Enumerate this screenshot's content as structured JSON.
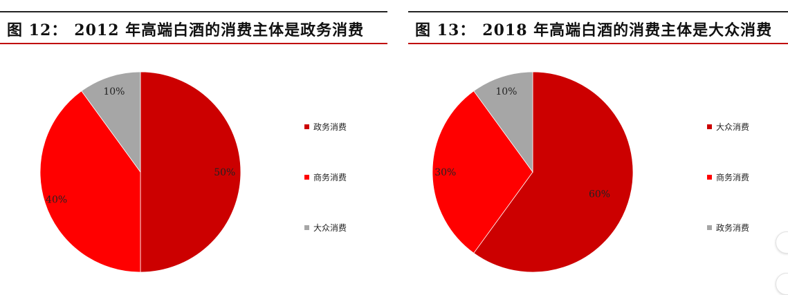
{
  "chart_data": [
    {
      "type": "pie",
      "figure_number": "图 12：",
      "title": "2012 年高端白酒的消费主体是政务消费",
      "slices": [
        {
          "label": "政务消费",
          "value": 50,
          "label_text": "50%",
          "color": "#cc0000"
        },
        {
          "label": "商务消费",
          "value": 40,
          "label_text": "40%",
          "color": "#ff0000"
        },
        {
          "label": "大众消费",
          "value": 10,
          "label_text": "10%",
          "color": "#a6a6a6"
        }
      ],
      "legend": [
        "政务消费",
        "商务消费",
        "大众消费"
      ],
      "legend_position": "right"
    },
    {
      "type": "pie",
      "figure_number": "图 13：",
      "title": "2018 年高端白酒的消费主体是大众消费",
      "slices": [
        {
          "label": "大众消费",
          "value": 60,
          "label_text": "60%",
          "color": "#cc0000"
        },
        {
          "label": "商务消费",
          "value": 30,
          "label_text": "30%",
          "color": "#ff0000"
        },
        {
          "label": "政务消费",
          "value": 10,
          "label_text": "10%",
          "color": "#a6a6a6"
        }
      ],
      "legend": [
        "大众消费",
        "商务消费",
        "政务消费"
      ],
      "legend_position": "right"
    }
  ]
}
